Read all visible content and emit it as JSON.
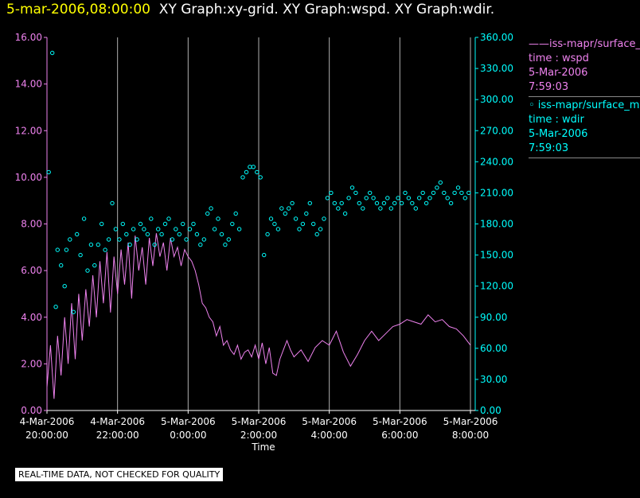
{
  "header": {
    "timestamp": "5-mar-2006,08:00:00",
    "graphs": "XY Graph:xy-grid.  XY Graph:wspd.  XY Graph:wdir."
  },
  "colors": {
    "wspd": "#ee82ee",
    "wdir": "#00ffff",
    "grid": "#b0b0b0",
    "axis": "#ffffff"
  },
  "legend": [
    {
      "line1": "——iss-mapr/surface_m",
      "line2": "time : wspd",
      "line3": "5-Mar-2006",
      "line4": "7:59:03"
    },
    {
      "line1": "◦  iss-mapr/surface_m",
      "line2": "time : wdir",
      "line3": "5-Mar-2006",
      "line4": "7:59:03"
    }
  ],
  "notice": "REAL-TIME DATA, NOT CHECKED FOR QUALITY",
  "chart_data": {
    "type": "line",
    "xlabel": "Time",
    "x_ticks": [
      {
        "date": "4-Mar-2006",
        "time": "20:00:00",
        "hours": 0
      },
      {
        "date": "4-Mar-2006",
        "time": "22:00:00",
        "hours": 2
      },
      {
        "date": "5-Mar-2006",
        "time": "0:00:00",
        "hours": 4
      },
      {
        "date": "5-Mar-2006",
        "time": "2:00:00",
        "hours": 6
      },
      {
        "date": "5-Mar-2006",
        "time": "4:00:00",
        "hours": 8
      },
      {
        "date": "5-Mar-2006",
        "time": "6:00:00",
        "hours": 10
      },
      {
        "date": "5-Mar-2006",
        "time": "8:00:00",
        "hours": 12
      }
    ],
    "xlim": [
      0,
      12
    ],
    "y_left": {
      "ylim": [
        0,
        16
      ],
      "ticks": [
        "0.00",
        "2.00",
        "4.00",
        "6.00",
        "8.00",
        "10.00",
        "12.00",
        "14.00",
        "16.00"
      ]
    },
    "y_right": {
      "ylim": [
        0,
        360
      ],
      "ticks": [
        "0.00",
        "30.00",
        "60.00",
        "90.00",
        "120.00",
        "150.00",
        "180.00",
        "210.00",
        "240.00",
        "270.00",
        "300.00",
        "330.00",
        "360.00"
      ]
    },
    "series": [
      {
        "name": "time : wspd",
        "axis": "left",
        "style": "line",
        "x": [
          0,
          0.1,
          0.2,
          0.3,
          0.4,
          0.5,
          0.6,
          0.7,
          0.8,
          0.9,
          1,
          1.1,
          1.2,
          1.3,
          1.4,
          1.5,
          1.6,
          1.7,
          1.8,
          1.9,
          2,
          2.1,
          2.2,
          2.3,
          2.4,
          2.5,
          2.6,
          2.7,
          2.8,
          2.9,
          3,
          3.1,
          3.2,
          3.3,
          3.4,
          3.5,
          3.6,
          3.7,
          3.8,
          3.9,
          4,
          4.1,
          4.2,
          4.3,
          4.4,
          4.5,
          4.6,
          4.7,
          4.8,
          4.9,
          5,
          5.1,
          5.2,
          5.3,
          5.4,
          5.5,
          5.6,
          5.7,
          5.8,
          5.9,
          6,
          6.1,
          6.2,
          6.3,
          6.4,
          6.5,
          6.6,
          6.7,
          6.8,
          6.9,
          7,
          7.2,
          7.4,
          7.6,
          7.8,
          8,
          8.2,
          8.4,
          8.6,
          8.8,
          9,
          9.2,
          9.4,
          9.6,
          9.8,
          10,
          10.2,
          10.4,
          10.6,
          10.8,
          11,
          11.2,
          11.4,
          11.6,
          11.8,
          12
        ],
        "y": [
          1.0,
          2.8,
          0.5,
          3.2,
          1.5,
          4.0,
          2.0,
          4.6,
          2.2,
          5.0,
          3.0,
          5.2,
          3.6,
          5.8,
          4.0,
          6.4,
          4.6,
          6.8,
          4.2,
          6.6,
          5.0,
          6.9,
          5.4,
          7.2,
          4.8,
          7.5,
          6.0,
          7.0,
          5.4,
          7.4,
          6.2,
          7.6,
          6.6,
          7.2,
          6.0,
          7.4,
          6.6,
          7.0,
          6.2,
          6.9,
          6.6,
          6.4,
          6.0,
          5.4,
          4.6,
          4.4,
          4.0,
          3.8,
          3.2,
          3.6,
          2.8,
          3.0,
          2.6,
          2.4,
          2.8,
          2.2,
          2.5,
          2.6,
          2.3,
          2.8,
          2.2,
          2.9,
          2.0,
          2.7,
          1.6,
          1.5,
          2.2,
          2.6,
          3.0,
          2.6,
          2.3,
          2.6,
          2.1,
          2.7,
          3.0,
          2.8,
          3.4,
          2.5,
          1.9,
          2.4,
          3.0,
          3.4,
          3.0,
          3.3,
          3.6,
          3.7,
          3.9,
          3.8,
          3.7,
          4.1,
          3.8,
          3.9,
          3.6,
          3.5,
          3.2,
          2.8
        ]
      },
      {
        "name": "time : wdir",
        "axis": "right",
        "style": "points",
        "x": [
          0.05,
          0.15,
          0.25,
          0.3,
          0.4,
          0.5,
          0.55,
          0.65,
          0.75,
          0.85,
          0.95,
          1.05,
          1.15,
          1.25,
          1.35,
          1.45,
          1.55,
          1.65,
          1.75,
          1.85,
          1.95,
          2.05,
          2.15,
          2.25,
          2.35,
          2.45,
          2.55,
          2.65,
          2.75,
          2.85,
          2.95,
          3.05,
          3.15,
          3.25,
          3.35,
          3.45,
          3.55,
          3.65,
          3.75,
          3.85,
          3.95,
          4.05,
          4.15,
          4.25,
          4.35,
          4.45,
          4.55,
          4.65,
          4.75,
          4.85,
          4.95,
          5.05,
          5.15,
          5.25,
          5.35,
          5.45,
          5.55,
          5.65,
          5.75,
          5.85,
          5.95,
          6.05,
          6.15,
          6.25,
          6.35,
          6.45,
          6.55,
          6.65,
          6.75,
          6.85,
          6.95,
          7.05,
          7.15,
          7.25,
          7.35,
          7.45,
          7.55,
          7.65,
          7.75,
          7.85,
          7.95,
          8.05,
          8.15,
          8.25,
          8.35,
          8.45,
          8.55,
          8.65,
          8.75,
          8.85,
          8.95,
          9.05,
          9.15,
          9.25,
          9.35,
          9.45,
          9.55,
          9.65,
          9.75,
          9.85,
          9.95,
          10.05,
          10.15,
          10.25,
          10.35,
          10.45,
          10.55,
          10.65,
          10.75,
          10.85,
          10.95,
          11.05,
          11.15,
          11.25,
          11.35,
          11.45,
          11.55,
          11.65,
          11.75,
          11.85,
          11.95
        ],
        "y": [
          230,
          345,
          100,
          155,
          140,
          120,
          155,
          165,
          95,
          170,
          150,
          185,
          135,
          160,
          140,
          160,
          180,
          155,
          165,
          200,
          175,
          165,
          180,
          170,
          160,
          175,
          165,
          180,
          175,
          170,
          185,
          160,
          175,
          170,
          180,
          185,
          165,
          175,
          170,
          180,
          165,
          175,
          180,
          170,
          160,
          165,
          190,
          195,
          175,
          185,
          170,
          160,
          165,
          180,
          190,
          175,
          225,
          230,
          235,
          235,
          230,
          225,
          150,
          170,
          185,
          180,
          175,
          195,
          190,
          195,
          200,
          185,
          175,
          180,
          190,
          200,
          180,
          170,
          175,
          185,
          205,
          210,
          200,
          195,
          200,
          190,
          205,
          215,
          210,
          200,
          195,
          205,
          210,
          205,
          200,
          195,
          200,
          205,
          195,
          200,
          205,
          200,
          210,
          205,
          200,
          195,
          205,
          210,
          200,
          205,
          210,
          215,
          220,
          210,
          205,
          200,
          210,
          215,
          210,
          205,
          210
        ]
      }
    ]
  }
}
